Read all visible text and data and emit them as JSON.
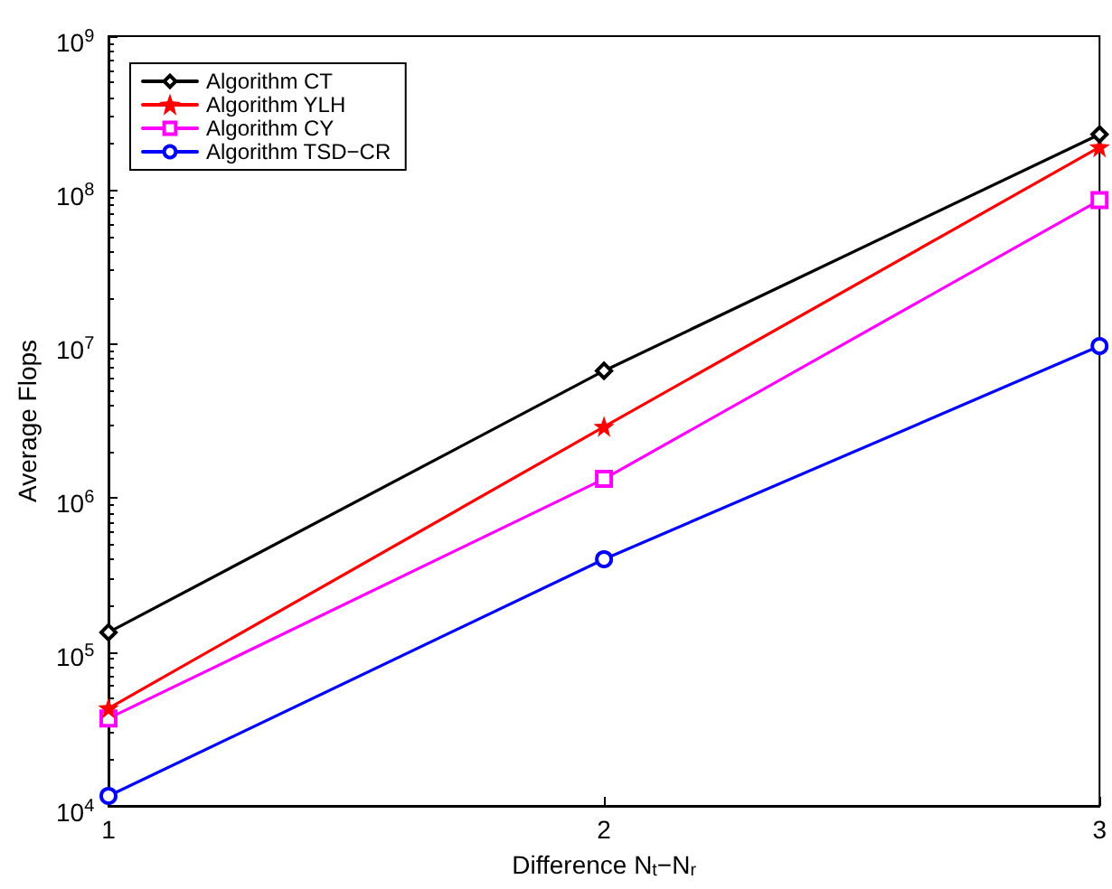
{
  "chart_data": {
    "type": "line",
    "xlabel": "Difference N$_{t}$−N$_{r}$",
    "ylabel": "Average Flops",
    "x": [
      1,
      2,
      3
    ],
    "series": [
      {
        "name": "Algorithm CT",
        "color": "#000000",
        "marker": "diamond",
        "values": [
          134000,
          6700000,
          230000000
        ]
      },
      {
        "name": "Algorithm YLH",
        "color": "#ff0000",
        "marker": "star",
        "values": [
          43000,
          2900000,
          190000000
        ]
      },
      {
        "name": "Algorithm CY",
        "color": "#ff00ff",
        "marker": "square",
        "values": [
          37000,
          1330000,
          86000000
        ]
      },
      {
        "name": "Algorithm TSD−CR",
        "color": "#0000ff",
        "marker": "circle",
        "values": [
          11600,
          400000,
          9700000
        ]
      }
    ],
    "xlim": [
      1,
      3
    ],
    "xticks": [
      1,
      2,
      3
    ],
    "ylim": [
      10000,
      1000000000
    ],
    "log": "y",
    "yticks": [
      {
        "value": 10000,
        "label": "10$^{4}$"
      },
      {
        "value": 100000,
        "label": "10$^{5}$"
      },
      {
        "value": 1000000,
        "label": "10$^{6}$"
      },
      {
        "value": 10000000,
        "label": "10$^{7}$"
      },
      {
        "value": 100000000,
        "label": "10$^{8}$"
      },
      {
        "value": 1000000000,
        "label": "10$^{9}$"
      }
    ],
    "grid": false,
    "legend": "top left",
    "line_style": "solid"
  }
}
